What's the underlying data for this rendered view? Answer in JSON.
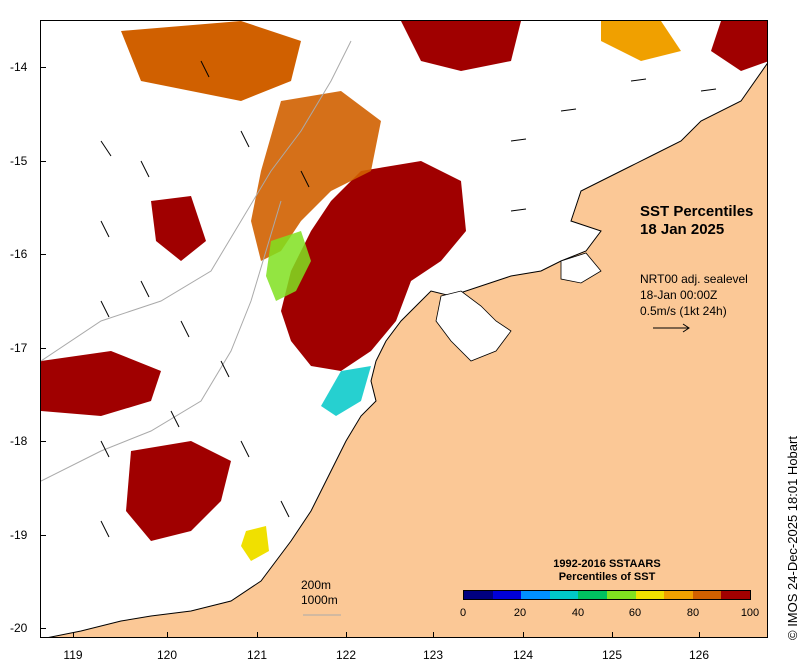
{
  "map": {
    "title_line1": "SST Percentiles",
    "title_line2": "18 Jan 2025",
    "lat_labels": [
      "-14",
      "-15",
      "-16",
      "-17",
      "-18",
      "-19",
      "-20"
    ],
    "lon_labels": [
      "119",
      "120",
      "121",
      "122",
      "123",
      "124",
      "125",
      "126"
    ],
    "wind": {
      "line1": "NRT00 adj. sealevel",
      "line2": "18-Jan 00:00Z",
      "line3": "0.5m/s (1kt 24h)"
    },
    "scale": {
      "line1": "200m",
      "line2": "1000m"
    },
    "legend": {
      "title1": "1992-2016 SSTAARS",
      "title2": "Percentiles of SST",
      "ticks": [
        "0",
        "20",
        "40",
        "60",
        "80",
        "100"
      ],
      "colors": [
        "#000080",
        "#0000d8",
        "#0090ff",
        "#00c8c8",
        "#00c060",
        "#80e020",
        "#f0e000",
        "#f0a000",
        "#d06000",
        "#a00000"
      ]
    },
    "credit": "© IMOS 24-Dec-2025 18:01 Hobart",
    "colors": {
      "land": "#fbc896",
      "ocean": "#ffffff",
      "hot": "#a00000",
      "warm": "#d06000"
    }
  }
}
